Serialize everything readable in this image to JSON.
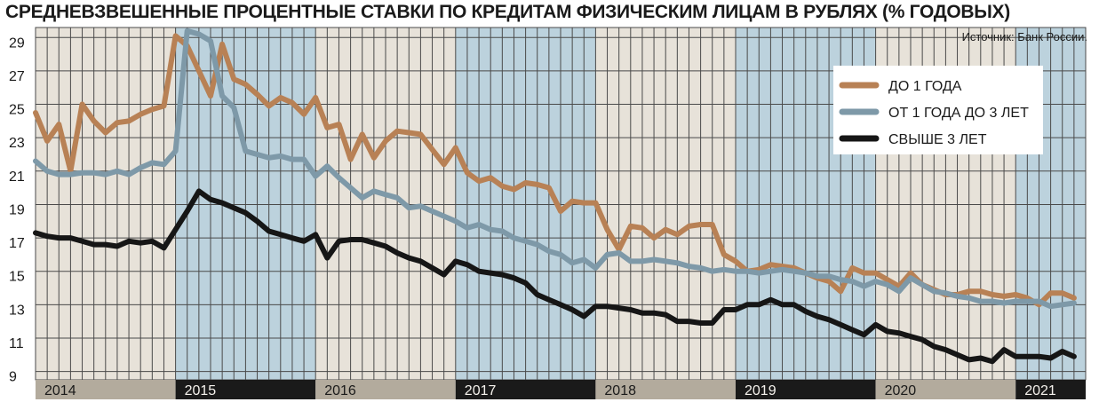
{
  "chart_data": {
    "type": "line",
    "title": "СРЕДНЕВЗВЕШЕННЫЕ ПРОЦЕНТНЫЕ СТАВКИ ПО КРЕДИТАМ ФИЗИЧЕСКИМ ЛИЦАМ В РУБЛЯХ (% ГОДОВЫХ)",
    "source": "Источник: Банк России.",
    "xlabel": "",
    "ylabel": "",
    "ylim": [
      8.5,
      29.6
    ],
    "y_ticks": [
      9,
      11,
      13,
      15,
      17,
      19,
      21,
      23,
      25,
      27,
      29
    ],
    "years": [
      "2014",
      "2015",
      "2016",
      "2017",
      "2018",
      "2019",
      "2020",
      "2021"
    ],
    "x_range_months": [
      0,
      90
    ],
    "x": [
      0,
      1,
      2,
      3,
      4,
      5,
      6,
      7,
      8,
      9,
      10,
      11,
      12,
      13,
      14,
      15,
      16,
      17,
      18,
      19,
      20,
      21,
      22,
      23,
      24,
      25,
      26,
      27,
      28,
      29,
      30,
      31,
      32,
      33,
      34,
      35,
      36,
      37,
      38,
      39,
      40,
      41,
      42,
      43,
      44,
      45,
      46,
      47,
      48,
      49,
      50,
      51,
      52,
      53,
      54,
      55,
      56,
      57,
      58,
      59,
      60,
      61,
      62,
      63,
      64,
      65,
      66,
      67,
      68,
      69,
      70,
      71,
      72,
      73,
      74,
      75,
      76,
      77,
      78,
      79,
      80,
      81,
      82,
      83,
      84,
      85,
      86,
      87,
      88,
      89
    ],
    "legend_position": "top-right",
    "grid": true,
    "colors": {
      "band_light": "#e7e2d9",
      "band_blue": "#bcd2dd",
      "grid_line": "#4a4a4a",
      "year_axis_dark": "#1a1a1a",
      "year_axis_gray": "#b3ab9d",
      "year_text_light": "#f4f1ec",
      "year_text_dark": "#1a1a1a"
    },
    "series": [
      {
        "name": "ДО 1 ГОДА",
        "color": "#b88155",
        "values": [
          24.5,
          22.8,
          23.8,
          21.0,
          25.0,
          24.0,
          23.3,
          23.9,
          24.0,
          24.4,
          24.7,
          24.9,
          29.1,
          28.5,
          27.0,
          25.5,
          28.6,
          26.5,
          26.2,
          25.6,
          24.9,
          25.4,
          25.1,
          24.4,
          25.4,
          23.6,
          23.8,
          21.7,
          23.2,
          21.8,
          22.8,
          23.4,
          23.3,
          23.2,
          22.3,
          21.4,
          22.4,
          20.9,
          20.4,
          20.6,
          20.1,
          19.9,
          20.3,
          20.2,
          20.0,
          18.6,
          19.2,
          19.1,
          19.1,
          17.5,
          16.3,
          17.7,
          17.6,
          17.0,
          17.5,
          17.2,
          17.7,
          17.8,
          17.8,
          16.0,
          15.6,
          15.0,
          15.1,
          15.4,
          15.3,
          15.2,
          14.9,
          14.6,
          14.4,
          13.8,
          15.2,
          14.9,
          14.9,
          14.5,
          14.1,
          14.9,
          14.2,
          13.9,
          13.6,
          13.6,
          13.8,
          13.8,
          13.6,
          13.5,
          13.6,
          13.4,
          13.0,
          13.7,
          13.7,
          13.4
        ]
      },
      {
        "name": "ОТ 1 ГОДА ДО 3 ЛЕТ",
        "color": "#7e99a8",
        "values": [
          21.6,
          21.0,
          20.8,
          20.8,
          20.9,
          20.9,
          20.8,
          21.0,
          20.8,
          21.2,
          21.5,
          21.4,
          22.2,
          29.4,
          29.2,
          28.8,
          25.5,
          24.8,
          22.2,
          22.0,
          21.8,
          21.9,
          21.7,
          21.7,
          20.7,
          21.3,
          20.6,
          20.0,
          19.4,
          19.8,
          19.6,
          19.4,
          18.8,
          18.9,
          18.6,
          18.3,
          18.0,
          17.6,
          17.8,
          17.5,
          17.4,
          17.0,
          16.8,
          16.6,
          16.2,
          16.0,
          15.5,
          15.7,
          15.2,
          16.0,
          16.1,
          15.6,
          15.6,
          15.7,
          15.6,
          15.5,
          15.3,
          15.2,
          15.0,
          15.1,
          15.0,
          15.0,
          14.9,
          15.0,
          15.1,
          15.0,
          14.9,
          14.7,
          14.7,
          14.5,
          14.4,
          14.1,
          14.4,
          14.2,
          13.8,
          14.6,
          14.2,
          13.8,
          13.7,
          13.5,
          13.4,
          13.2,
          13.2,
          13.1,
          13.2,
          13.2,
          13.2,
          12.9,
          13.0,
          13.1
        ]
      },
      {
        "name": "СВЫШЕ 3 ЛЕТ",
        "color": "#161616",
        "values": [
          17.3,
          17.1,
          17.0,
          17.0,
          16.8,
          16.6,
          16.6,
          16.5,
          16.8,
          16.7,
          16.8,
          16.4,
          17.5,
          18.6,
          19.8,
          19.3,
          19.1,
          18.8,
          18.5,
          18.0,
          17.4,
          17.2,
          17.0,
          16.8,
          17.2,
          15.8,
          16.8,
          16.9,
          16.9,
          16.7,
          16.5,
          16.1,
          15.8,
          15.6,
          15.2,
          14.8,
          15.6,
          15.4,
          15.0,
          14.9,
          14.8,
          14.6,
          14.3,
          13.6,
          13.3,
          13.0,
          12.7,
          12.3,
          12.9,
          12.9,
          12.8,
          12.7,
          12.5,
          12.5,
          12.4,
          12.0,
          12.0,
          11.9,
          11.9,
          12.7,
          12.7,
          13.0,
          13.0,
          13.3,
          13.0,
          13.0,
          12.6,
          12.3,
          12.1,
          11.8,
          11.5,
          11.2,
          11.8,
          11.4,
          11.3,
          11.1,
          10.9,
          10.5,
          10.3,
          10.0,
          9.7,
          9.8,
          9.6,
          10.3,
          9.9,
          9.9,
          9.9,
          9.8,
          10.2,
          9.9
        ]
      }
    ]
  }
}
